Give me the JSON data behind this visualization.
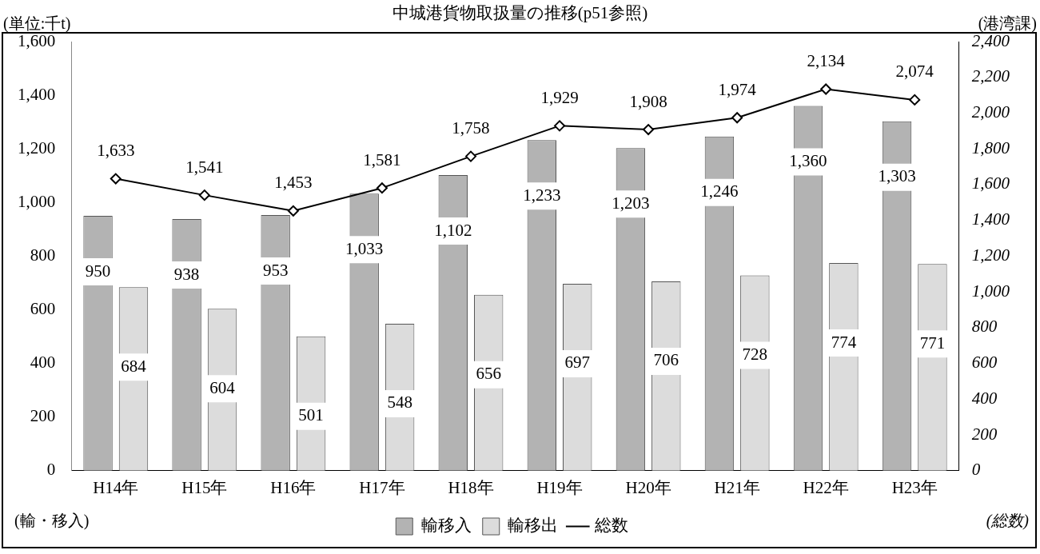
{
  "chart_data": {
    "type": "bar",
    "title": "中城港貨物取扱量の推移(p51参照)",
    "categories": [
      "H14年",
      "H15年",
      "H16年",
      "H17年",
      "H18年",
      "H19年",
      "H20年",
      "H21年",
      "H22年",
      "H23年"
    ],
    "series": [
      {
        "name": "輸移入",
        "color": "#b3b3b3",
        "values": [
          950,
          938,
          953,
          1033,
          1102,
          1233,
          1203,
          1246,
          1360,
          1303
        ],
        "value_labels": [
          "950",
          "938",
          "953",
          "1,033",
          "1,102",
          "1,233",
          "1,203",
          "1,246",
          "1,360",
          "1,303"
        ]
      },
      {
        "name": "輸移出",
        "color": "#dcdcdc",
        "values": [
          684,
          604,
          501,
          548,
          656,
          697,
          706,
          728,
          774,
          771
        ],
        "value_labels": [
          "684",
          "604",
          "501",
          "548",
          "656",
          "697",
          "706",
          "728",
          "774",
          "771"
        ]
      },
      {
        "name": "総数",
        "type": "line",
        "axis": "y2",
        "color": "#000000",
        "marker": "diamond",
        "values": [
          1633,
          1541,
          1453,
          1581,
          1758,
          1929,
          1908,
          1974,
          2134,
          2074
        ],
        "value_labels": [
          "1,633",
          "1,541",
          "1,453",
          "1,581",
          "1,758",
          "1,929",
          "1,908",
          "1,974",
          "2,134",
          "2,074"
        ]
      }
    ],
    "ylabel": "(輸・移入)",
    "y2label": "(総数)",
    "ylim": [
      0,
      1600
    ],
    "yticks": [
      0,
      200,
      400,
      600,
      800,
      {
        "value": 1000,
        "label": "1,000"
      },
      {
        "value": 1200,
        "label": "1,200"
      },
      {
        "value": 1400,
        "label": "1,400"
      },
      {
        "value": 1600,
        "label": "1,600"
      }
    ],
    "y2lim": [
      0,
      2400
    ],
    "y2ticks": [
      0,
      200,
      400,
      600,
      800,
      {
        "value": 1000,
        "label": "1,000"
      },
      {
        "value": 1200,
        "label": "1,200"
      },
      {
        "value": 1400,
        "label": "1,400"
      },
      {
        "value": 1600,
        "label": "1,600"
      },
      {
        "value": 1800,
        "label": "1,800"
      },
      {
        "value": 2000,
        "label": "2,000"
      },
      {
        "value": 2200,
        "label": "2,200"
      },
      {
        "value": 2400,
        "label": "2,400"
      }
    ],
    "grid": false,
    "legend": "bottom",
    "annotations": [
      "(単位:千t)",
      "(港湾課)"
    ]
  }
}
